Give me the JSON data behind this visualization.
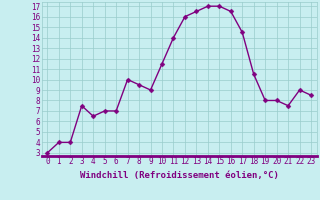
{
  "x": [
    0,
    1,
    2,
    3,
    4,
    5,
    6,
    7,
    8,
    9,
    10,
    11,
    12,
    13,
    14,
    15,
    16,
    17,
    18,
    19,
    20,
    21,
    22,
    23
  ],
  "y": [
    3,
    4,
    4,
    7.5,
    6.5,
    7,
    7,
    10,
    9.5,
    9,
    11.5,
    14,
    16,
    16.5,
    17,
    17,
    16.5,
    14.5,
    10.5,
    8,
    8,
    7.5,
    9,
    8.5
  ],
  "line_color": "#800080",
  "marker_color": "#800080",
  "bg_color": "#c8eef0",
  "grid_color": "#99cccc",
  "xlabel": "Windchill (Refroidissement éolien,°C)",
  "xlim_min": -0.5,
  "xlim_max": 23.5,
  "ylim_min": 2.7,
  "ylim_max": 17.4,
  "yticks": [
    3,
    4,
    5,
    6,
    7,
    8,
    9,
    10,
    11,
    12,
    13,
    14,
    15,
    16,
    17
  ],
  "xticks": [
    0,
    1,
    2,
    3,
    4,
    5,
    6,
    7,
    8,
    9,
    10,
    11,
    12,
    13,
    14,
    15,
    16,
    17,
    18,
    19,
    20,
    21,
    22,
    23
  ],
  "tick_label_color": "#800080",
  "xlabel_color": "#800080",
  "xlabel_fontsize": 6.5,
  "tick_fontsize": 5.5,
  "line_width": 1.0,
  "marker_size": 2.5,
  "separator_color": "#800080",
  "separator_linewidth": 2.0
}
